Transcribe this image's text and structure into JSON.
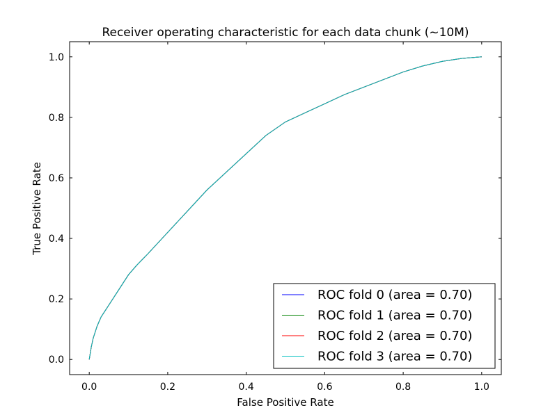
{
  "chart_data": {
    "type": "line",
    "title": "Receiver operating characteristic for each data chunk (~10M)",
    "xlabel": "False Positive Rate",
    "ylabel": "True Positive Rate",
    "xlim": [
      -0.05,
      1.05
    ],
    "ylim": [
      -0.05,
      1.05
    ],
    "xticks": [
      0.0,
      0.2,
      0.4,
      0.6,
      0.8,
      1.0
    ],
    "yticks": [
      0.0,
      0.2,
      0.4,
      0.6,
      0.8,
      1.0
    ],
    "xtick_labels": [
      "0.0",
      "0.2",
      "0.4",
      "0.6",
      "0.8",
      "1.0"
    ],
    "ytick_labels": [
      "0.0",
      "0.2",
      "0.4",
      "0.6",
      "0.8",
      "1.0"
    ],
    "grid": false,
    "legend_position": "lower-right",
    "series": [
      {
        "name": "ROC fold 0 (area = 0.70)",
        "color": "#0000ff",
        "x": [
          0,
          0.005,
          0.01,
          0.02,
          0.03,
          0.04,
          0.05,
          0.07,
          0.1,
          0.12,
          0.15,
          0.2,
          0.25,
          0.3,
          0.35,
          0.4,
          0.45,
          0.5,
          0.55,
          0.6,
          0.65,
          0.7,
          0.75,
          0.8,
          0.85,
          0.9,
          0.95,
          1.0
        ],
        "y": [
          0,
          0.04,
          0.07,
          0.11,
          0.14,
          0.16,
          0.18,
          0.22,
          0.28,
          0.31,
          0.35,
          0.42,
          0.49,
          0.56,
          0.62,
          0.68,
          0.74,
          0.785,
          0.815,
          0.845,
          0.875,
          0.9,
          0.925,
          0.95,
          0.97,
          0.985,
          0.995,
          1.0
        ]
      },
      {
        "name": "ROC fold 1 (area = 0.70)",
        "color": "#008000",
        "x": [
          0,
          0.005,
          0.01,
          0.02,
          0.03,
          0.04,
          0.05,
          0.07,
          0.1,
          0.12,
          0.15,
          0.2,
          0.25,
          0.3,
          0.35,
          0.4,
          0.45,
          0.5,
          0.55,
          0.6,
          0.65,
          0.7,
          0.75,
          0.8,
          0.85,
          0.9,
          0.95,
          1.0
        ],
        "y": [
          0,
          0.04,
          0.07,
          0.11,
          0.14,
          0.16,
          0.18,
          0.22,
          0.28,
          0.31,
          0.35,
          0.42,
          0.49,
          0.56,
          0.62,
          0.68,
          0.74,
          0.785,
          0.815,
          0.845,
          0.875,
          0.9,
          0.925,
          0.95,
          0.97,
          0.985,
          0.995,
          1.0
        ]
      },
      {
        "name": "ROC fold 2 (area = 0.70)",
        "color": "#ff0000",
        "x": [
          0,
          0.005,
          0.01,
          0.02,
          0.03,
          0.04,
          0.05,
          0.07,
          0.1,
          0.12,
          0.15,
          0.2,
          0.25,
          0.3,
          0.35,
          0.4,
          0.45,
          0.5,
          0.55,
          0.6,
          0.65,
          0.7,
          0.75,
          0.8,
          0.85,
          0.9,
          0.95,
          1.0
        ],
        "y": [
          0,
          0.04,
          0.07,
          0.11,
          0.14,
          0.16,
          0.18,
          0.22,
          0.28,
          0.31,
          0.35,
          0.42,
          0.49,
          0.56,
          0.62,
          0.68,
          0.74,
          0.785,
          0.815,
          0.845,
          0.875,
          0.9,
          0.925,
          0.95,
          0.97,
          0.985,
          0.995,
          1.0
        ]
      },
      {
        "name": "ROC fold 3 (area = 0.70)",
        "color": "#00bfbf",
        "x": [
          0,
          0.005,
          0.01,
          0.02,
          0.03,
          0.04,
          0.05,
          0.07,
          0.1,
          0.12,
          0.15,
          0.2,
          0.25,
          0.3,
          0.35,
          0.4,
          0.45,
          0.5,
          0.55,
          0.6,
          0.65,
          0.7,
          0.75,
          0.8,
          0.85,
          0.9,
          0.95,
          1.0
        ],
        "y": [
          0,
          0.04,
          0.07,
          0.11,
          0.14,
          0.16,
          0.18,
          0.22,
          0.28,
          0.31,
          0.35,
          0.42,
          0.49,
          0.56,
          0.62,
          0.68,
          0.74,
          0.785,
          0.815,
          0.845,
          0.875,
          0.9,
          0.925,
          0.95,
          0.97,
          0.985,
          0.995,
          1.0
        ]
      }
    ]
  }
}
